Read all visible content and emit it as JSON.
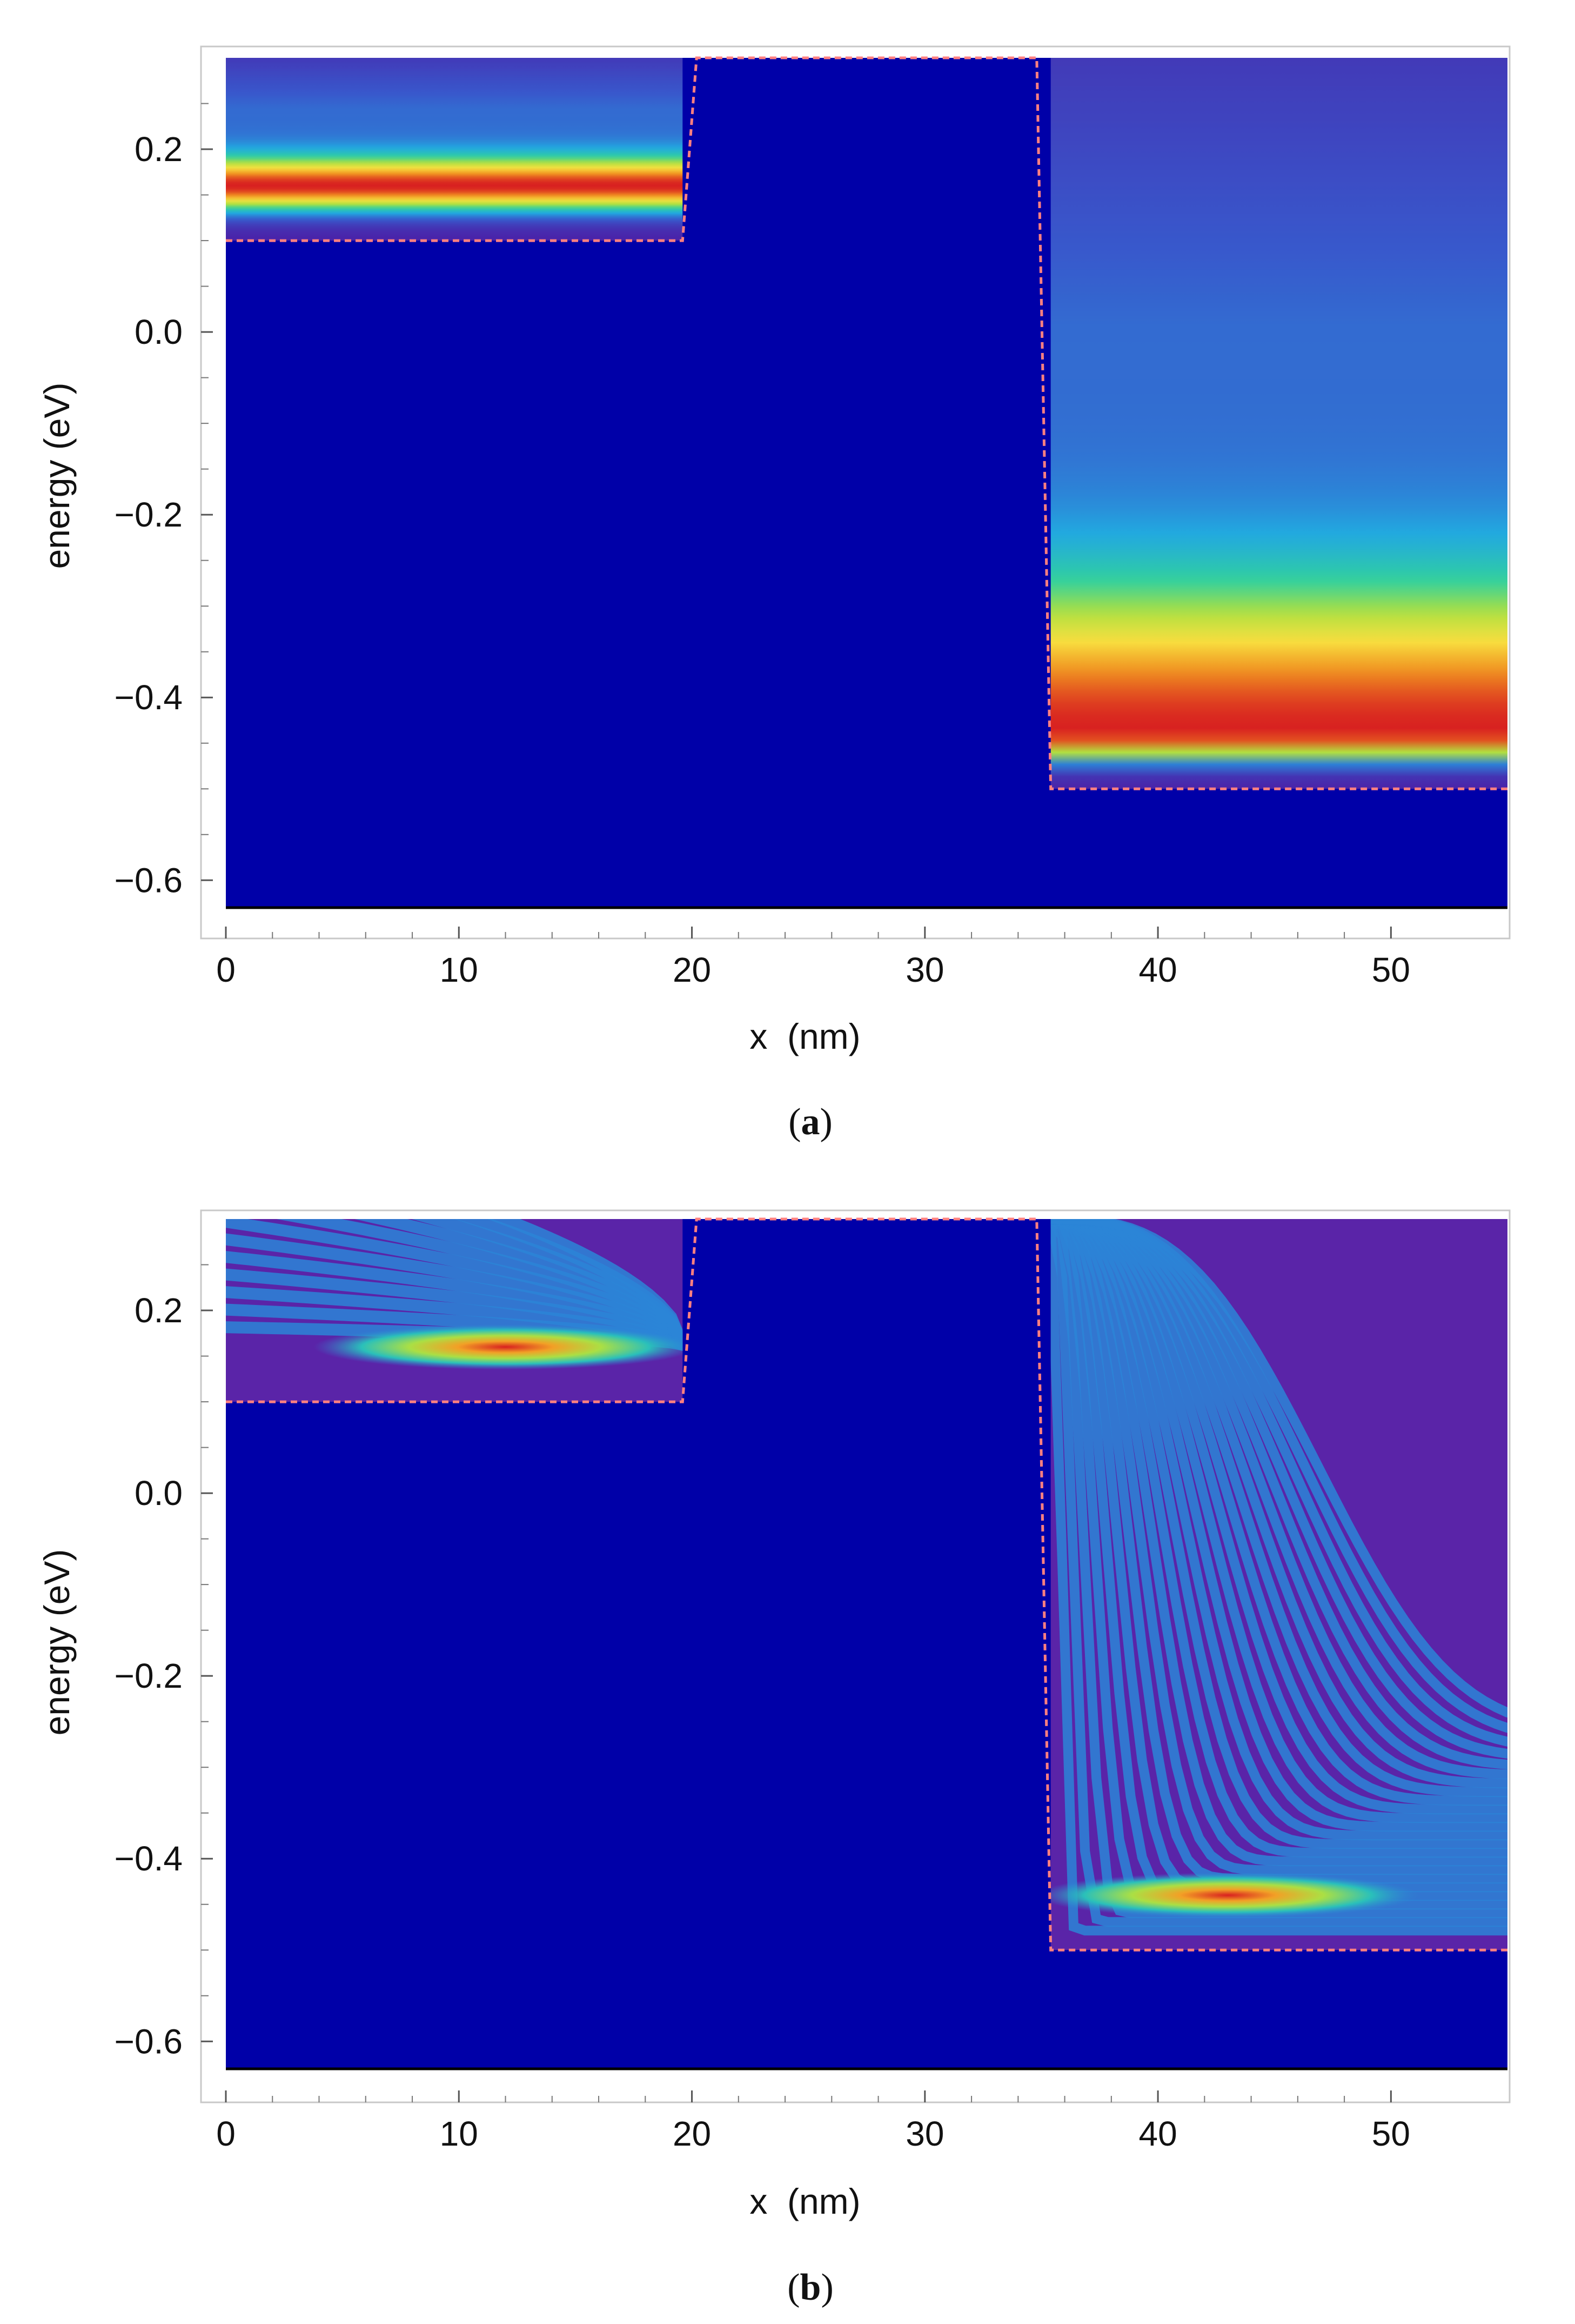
{
  "colors": {
    "background": "#0000a8",
    "frame": "#c8c8c8",
    "barrier_outline": "#ff8080",
    "colorscale": [
      "#0000a8",
      "#4a22a8",
      "#3858cc",
      "#22a8e0",
      "#30d0a0",
      "#b0e040",
      "#f8e040",
      "#f09020",
      "#d82020"
    ]
  },
  "chart_data": [
    {
      "panel": "a",
      "caption": "a",
      "type": "heatmap",
      "title": "",
      "xlabel": "x  (nm)",
      "ylabel": "energy (eV)",
      "xlim": [
        0,
        55
      ],
      "ylim": [
        -0.63,
        0.3
      ],
      "x_ticks": [
        0,
        10,
        20,
        30,
        40,
        50
      ],
      "y_ticks": [
        -0.6,
        -0.4,
        -0.2,
        0.0,
        0.2
      ],
      "x_tick_labels": [
        "0",
        "10",
        "20",
        "30",
        "40",
        "50"
      ],
      "y_tick_labels": [
        "−0.6",
        "−0.4",
        "−0.2",
        "0.0",
        "0.2"
      ],
      "potential_profile": {
        "x": [
          0,
          19.6,
          20.2,
          34.8,
          35.4,
          55
        ],
        "energy": [
          0.1,
          0.1,
          0.3,
          0.3,
          -0.5,
          -0.5
        ]
      },
      "regions": [
        {
          "x": [
            0,
            19.6
          ],
          "band_bottom": 0.1,
          "peak_energy": 0.16,
          "pattern": "uniform"
        },
        {
          "x": [
            35.4,
            55
          ],
          "band_bottom": -0.5,
          "peak_energy": -0.44,
          "pattern": "uniform"
        }
      ]
    },
    {
      "panel": "b",
      "caption": "b",
      "type": "heatmap",
      "title": "",
      "xlabel": "x  (nm)",
      "ylabel": "energy (eV)",
      "xlim": [
        0,
        55
      ],
      "ylim": [
        -0.63,
        0.3
      ],
      "x_ticks": [
        0,
        10,
        20,
        30,
        40,
        50
      ],
      "y_ticks": [
        -0.6,
        -0.4,
        -0.2,
        0.0,
        0.2
      ],
      "x_tick_labels": [
        "0",
        "10",
        "20",
        "30",
        "40",
        "50"
      ],
      "y_tick_labels": [
        "−0.6",
        "−0.4",
        "−0.2",
        "0.0",
        "0.2"
      ],
      "potential_profile": {
        "x": [
          0,
          19.6,
          20.2,
          34.8,
          35.4,
          55
        ],
        "energy": [
          0.1,
          0.1,
          0.3,
          0.3,
          -0.5,
          -0.5
        ]
      },
      "regions": [
        {
          "x": [
            0,
            19.6
          ],
          "band_bottom": 0.1,
          "peak_energy": 0.16,
          "peak_x": 12,
          "pattern": "interference"
        },
        {
          "x": [
            35.4,
            55
          ],
          "band_bottom": -0.5,
          "peak_energy": -0.44,
          "peak_x": 43,
          "pattern": "interference"
        }
      ]
    }
  ]
}
